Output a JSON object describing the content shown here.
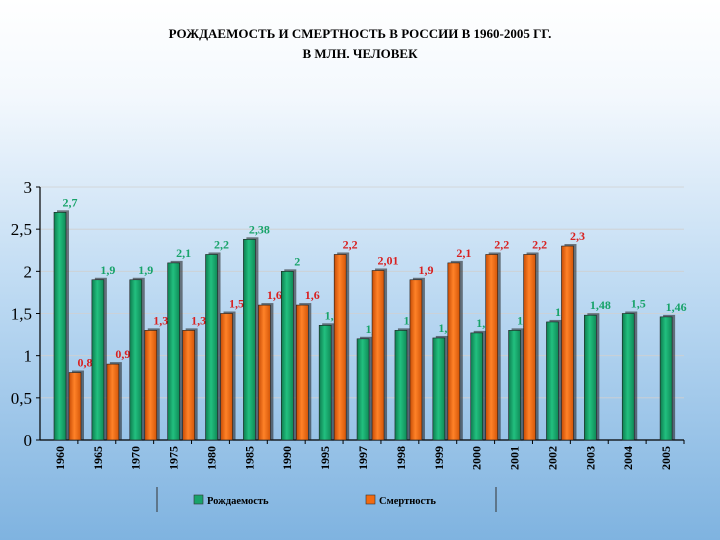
{
  "chart_data": {
    "type": "bar",
    "title_line1": "РОЖДАЕМОСТЬ И СМЕРТНОСТЬ В РОССИИ В 1960-2005 ГГ.",
    "title_line2": "В МЛН. ЧЕЛОВЕК",
    "categories": [
      "1960",
      "1965",
      "1970",
      "1975",
      "1980",
      "1985",
      "1990",
      "1995",
      "1997",
      "1998",
      "1999",
      "2000",
      "2001",
      "2002",
      "2003",
      "2004",
      "2005"
    ],
    "ylim": [
      0,
      3
    ],
    "yticks": [
      "0",
      "0,5",
      "1",
      "1,5",
      "2",
      "2,5",
      "3"
    ],
    "series": [
      {
        "name": "Рождаемость",
        "color": "#18a36a",
        "values": [
          2.7,
          1.9,
          1.9,
          2.1,
          2.2,
          2.38,
          2,
          1.36,
          1.2,
          1.3,
          1.21,
          1.27,
          1.3,
          1.4,
          1.48,
          1.5,
          1.46
        ],
        "labels": [
          "2,7",
          "1,9",
          "1,9",
          "2,1",
          "2,2",
          "2,38",
          "2",
          "1,36",
          "1,2",
          "1,3",
          "1,21",
          "1,27",
          "1,3",
          "1,4",
          "1,48",
          "1,5",
          "1,46"
        ]
      },
      {
        "name": "Смертность",
        "color": "#f26a10",
        "values": [
          0.8,
          0.9,
          1.3,
          1.3,
          1.5,
          1.6,
          1.6,
          2.2,
          2.01,
          1.9,
          2.1,
          2.2,
          2.2,
          2.3,
          null,
          null,
          null
        ],
        "labels": [
          "0,8",
          "0,9",
          "1,3",
          "1,3",
          "1,5",
          "1,6",
          "1,6",
          "2,2",
          "2,01",
          "1,9",
          "2,1",
          "2,2",
          "2,2",
          "2,3",
          "",
          "",
          ""
        ]
      }
    ],
    "legend_position": "bottom",
    "grid": true
  }
}
